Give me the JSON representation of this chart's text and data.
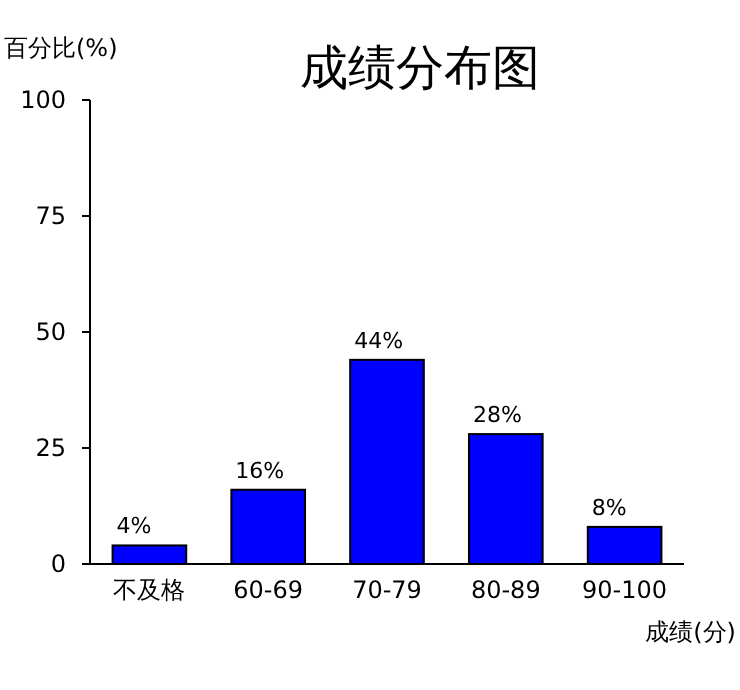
{
  "chart_data": {
    "type": "bar",
    "title": "成绩分布图",
    "ylabel": "百分比(%)",
    "xlabel": "成绩(分)",
    "categories": [
      "不及格",
      "60-69",
      "70-79",
      "80-89",
      "90-100"
    ],
    "values": [
      4,
      16,
      44,
      28,
      8
    ],
    "value_labels": [
      "4%",
      "16%",
      "44%",
      "28%",
      "8%"
    ],
    "color": "#0000ff",
    "ylim": [
      0,
      100
    ],
    "yticks": [
      0,
      25,
      50,
      75,
      100
    ]
  }
}
